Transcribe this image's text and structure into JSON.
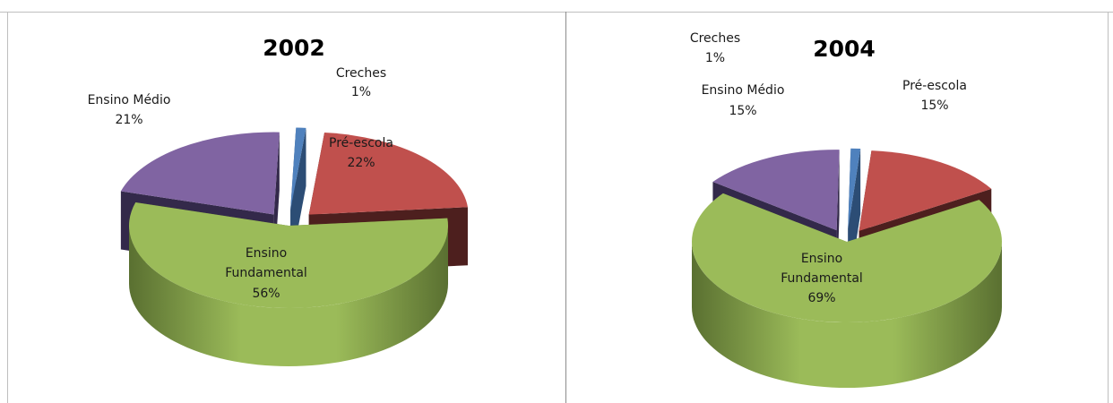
{
  "chart_data": [
    {
      "type": "pie",
      "title": "2002",
      "slices": [
        {
          "label": "Creches",
          "value": 1,
          "value_label": "1%",
          "color": "#4f81bd",
          "side_color": "#2c4d75"
        },
        {
          "label": "Pré-escola",
          "value": 22,
          "value_label": "22%",
          "color": "#c0504d",
          "side_color": "#4d1f1e"
        },
        {
          "label": "Ensino Fundamental",
          "label_lines": [
            "Ensino",
            "Fundamental"
          ],
          "value": 56,
          "value_label": "56%",
          "color": "#9bbb59",
          "side_color": "#5a7031"
        },
        {
          "label": "Ensino Médio",
          "value": 21,
          "value_label": "21%",
          "color": "#8064a2",
          "side_color": "#33294a"
        }
      ]
    },
    {
      "type": "pie",
      "title": "2004",
      "slices": [
        {
          "label": "Creches",
          "value": 1,
          "value_label": "1%",
          "color": "#4f81bd",
          "side_color": "#2c4d75"
        },
        {
          "label": "Pré-escola",
          "value": 15,
          "value_label": "15%",
          "color": "#c0504d",
          "side_color": "#4d1f1e"
        },
        {
          "label": "Ensino Fundamental",
          "label_lines": [
            "Ensino",
            "Fundamental"
          ],
          "value": 69,
          "value_label": "69%",
          "color": "#9bbb59",
          "side_color": "#5a7031"
        },
        {
          "label": "Ensino Médio",
          "value": 15,
          "value_label": "15%",
          "color": "#8064a2",
          "side_color": "#33294a"
        }
      ]
    }
  ]
}
